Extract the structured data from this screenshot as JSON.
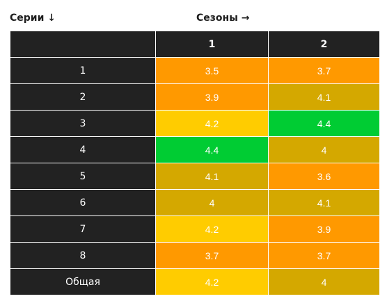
{
  "headers": {
    "rows": "Серии ↓",
    "columns": "Сезоны →"
  },
  "colors": {
    "dark": "#222222",
    "orange": "#ff9900",
    "olive": "#d4a800",
    "yellow": "#ffcc00",
    "green": "#00cc33"
  },
  "chart_data": {
    "type": "heatmap",
    "columns": [
      "1",
      "2"
    ],
    "rows": [
      {
        "label": "1",
        "values": [
          "3.5",
          "3.7"
        ],
        "colors": [
          "orange",
          "orange"
        ]
      },
      {
        "label": "2",
        "values": [
          "3.9",
          "4.1"
        ],
        "colors": [
          "orange",
          "olive"
        ]
      },
      {
        "label": "3",
        "values": [
          "4.2",
          "4.4"
        ],
        "colors": [
          "yellow",
          "green"
        ]
      },
      {
        "label": "4",
        "values": [
          "4.4",
          "4"
        ],
        "colors": [
          "green",
          "olive"
        ]
      },
      {
        "label": "5",
        "values": [
          "4.1",
          "3.6"
        ],
        "colors": [
          "olive",
          "orange"
        ]
      },
      {
        "label": "6",
        "values": [
          "4",
          "4.1"
        ],
        "colors": [
          "olive",
          "olive"
        ]
      },
      {
        "label": "7",
        "values": [
          "4.2",
          "3.9"
        ],
        "colors": [
          "yellow",
          "orange"
        ]
      },
      {
        "label": "8",
        "values": [
          "3.7",
          "3.7"
        ],
        "colors": [
          "orange",
          "orange"
        ]
      },
      {
        "label": "Общая",
        "values": [
          "4.2",
          "4"
        ],
        "colors": [
          "yellow",
          "olive"
        ]
      }
    ]
  }
}
